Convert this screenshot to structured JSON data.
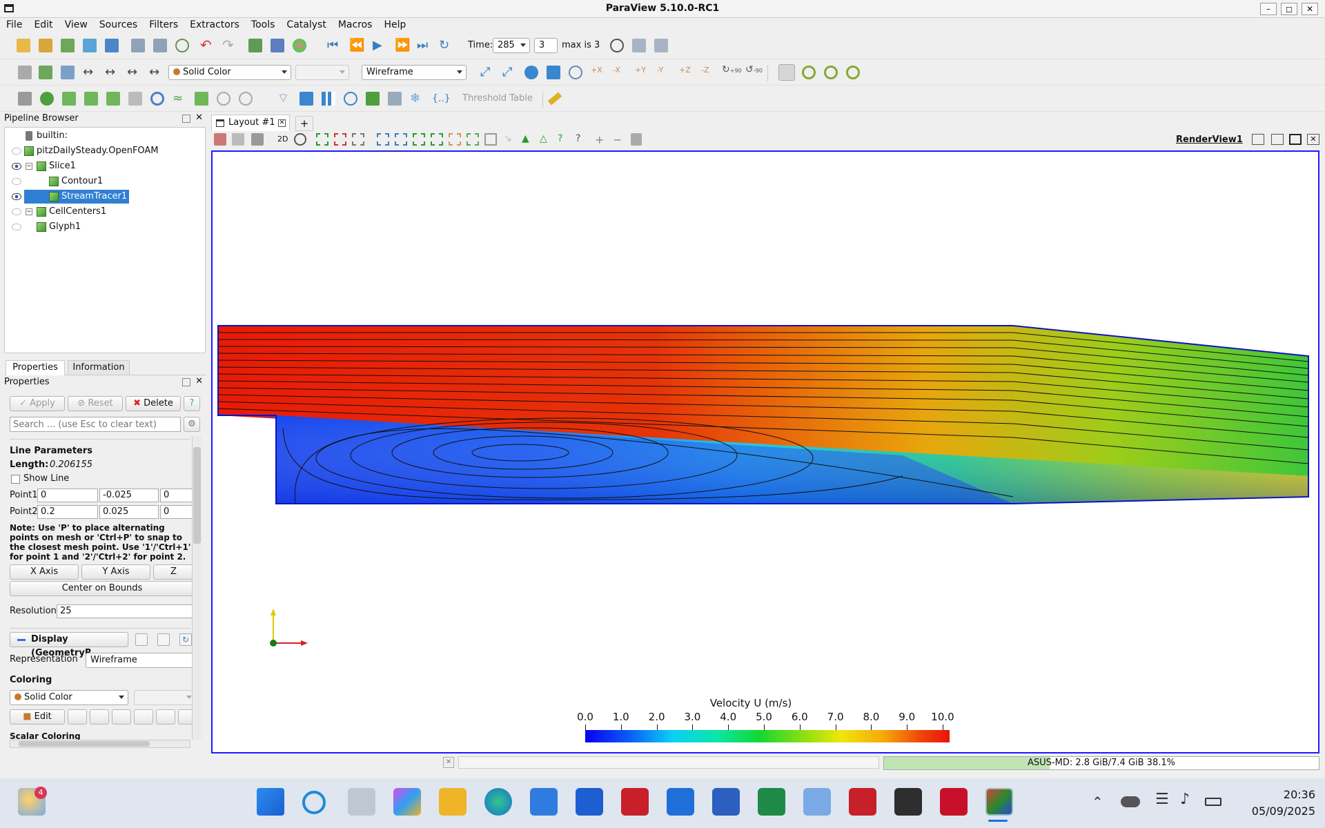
{
  "window": {
    "title": "ParaView 5.10.0-RC1"
  },
  "menu": [
    "File",
    "Edit",
    "View",
    "Sources",
    "Filters",
    "Extractors",
    "Tools",
    "Catalyst",
    "Macros",
    "Help"
  ],
  "toolbar": {
    "time_label": "Time:",
    "time_value": "285",
    "step_value": "3",
    "max_label": "max is 3",
    "color_by": "Solid Color",
    "component": "",
    "representation": "Wireframe",
    "threshold_table": "Threshold Table",
    "plus90": "+90",
    "minus90": "-90"
  },
  "pipeline": {
    "title": "Pipeline Browser",
    "items": [
      {
        "label": "builtin:",
        "visible": false
      },
      {
        "label": "pitzDailySteady.OpenFOAM",
        "visible": false
      },
      {
        "label": "Slice1",
        "visible": true
      },
      {
        "label": "Contour1",
        "visible": false
      },
      {
        "label": "StreamTracer1",
        "visible": true,
        "selected": true
      },
      {
        "label": "CellCenters1",
        "visible": false
      },
      {
        "label": "Glyph1",
        "visible": false
      }
    ]
  },
  "tabs": {
    "properties": "Properties",
    "information": "Information"
  },
  "properties": {
    "title": "Properties",
    "apply": "Apply",
    "reset": "Reset",
    "delete": "Delete",
    "help": "?",
    "search_placeholder": "Search ... (use Esc to clear text)",
    "line_params": "Line Parameters",
    "length_label": "Length:",
    "length_value": "0.206155",
    "show_line": "Show Line",
    "point1": "Point1",
    "point2": "Point2",
    "p1": [
      "0",
      "-0.025",
      "0"
    ],
    "p2": [
      "0.2",
      "0.025",
      "0"
    ],
    "note_bold": "Note:",
    "note": "Use 'P' to place alternating points on mesh or 'Ctrl+P' to snap to the closest mesh point. Use '1'/'Ctrl+1' for point 1 and '2'/'Ctrl+2' for point 2.",
    "x_axis": "X Axis",
    "y_axis": "Y Axis",
    "z_axis": "Z Axis",
    "center": "Center on Bounds",
    "resolution_label": "Resolution",
    "resolution": "25",
    "display_header": "Display (GeometryR",
    "representation_label": "Representation",
    "representation": "Wireframe",
    "coloring": "Coloring",
    "solid_color": "Solid Color",
    "edit": "Edit",
    "scalar_coloring": "Scalar Coloring"
  },
  "layout": {
    "tab": "Layout #1",
    "add": "+",
    "view_name": "RenderView1",
    "mode_2d": "2D"
  },
  "colorbar": {
    "title": "Velocity U (m/s)",
    "ticks": [
      "0.0",
      "1.0",
      "2.0",
      "3.0",
      "4.0",
      "5.0",
      "6.0",
      "7.0",
      "8.0",
      "9.0",
      "10.0"
    ],
    "min": 0,
    "max": 10
  },
  "status": {
    "memory": "ASUS-MD: 2.8 GiB/7.4 GiB 38.1%",
    "memory_fraction": 0.381
  },
  "taskbar": {
    "notif_badge": "4",
    "time": "20:36",
    "date": "05/09/2025"
  },
  "colors": {
    "accent": "#3a6fd8",
    "selection": "#2f7fd3",
    "view_border": "#1b1bff"
  }
}
